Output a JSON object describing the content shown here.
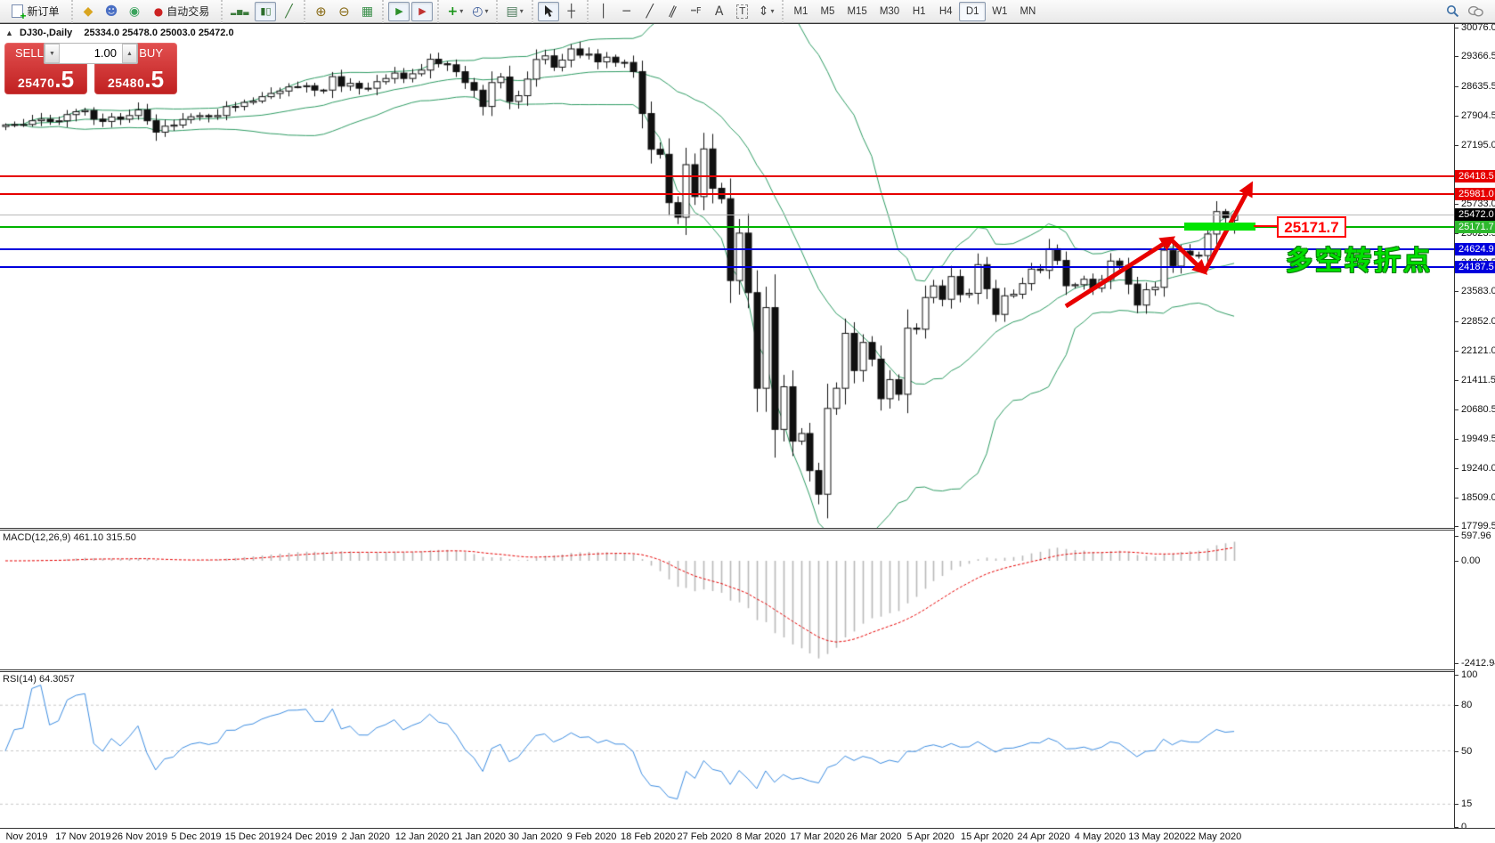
{
  "toolbar": {
    "new_order_label": "新订单",
    "auto_trading_label": "自动交易",
    "timeframes": [
      "M1",
      "M5",
      "M15",
      "M30",
      "H1",
      "H4",
      "D1",
      "W1",
      "MN"
    ],
    "active_timeframe": "D1",
    "icons": {
      "package": "◆",
      "profile": "☻",
      "signal": "◉",
      "auto_trading_dot": "●",
      "bar_chart": "▂▅▃",
      "candle_chart": "▮▯",
      "line_chart": "╱",
      "zoom_in": "⊕",
      "zoom_out": "⊖",
      "tile_windows": "▦",
      "auto_scroll": "▶",
      "chart_shift": "▶",
      "indicators_plus": "+",
      "periods_clock": "◴",
      "templates": "▤",
      "crosshair": "┼",
      "vertical_line": "│",
      "horizontal_line": "─",
      "trend_line": "╱",
      "channel": "∥",
      "fibonacci": "┅F",
      "text": "A",
      "text_label": "T",
      "arrows_tool": "⇕",
      "dropdown": "▾"
    }
  },
  "one_click": {
    "sell_label": "SELL",
    "buy_label": "BUY",
    "volume": "1.00",
    "sell_price_small": "25470",
    "sell_price_big": ".5",
    "buy_price_small": "25480",
    "buy_price_big": ".5"
  },
  "info": {
    "symbol_period": "DJ30-,Daily",
    "ohlc_text": "25334.0 25478.0 25003.0 25472.0"
  },
  "macd_panel": {
    "name": "MACD(12,26,9)",
    "values": "461.10 315.50",
    "axis_ticks": [
      597.96,
      0.0,
      -2412.94
    ]
  },
  "rsi_panel": {
    "name": "RSI(14)",
    "value": "64.3057"
  },
  "chart_data": {
    "type": "candlestick",
    "symbol": "DJ30-",
    "timeframe": "Daily",
    "title": "DJ30-,Daily",
    "last_bar_ohlc": [
      25334.0,
      25478.0,
      25003.0,
      25472.0
    ],
    "y_axis_ticks": [
      30076.0,
      29366.5,
      28635.5,
      27904.5,
      27195.0,
      25733.0,
      25023.5,
      24292.5,
      23583.0,
      22852.0,
      22121.0,
      21411.5,
      20680.5,
      19949.5,
      19240.0,
      18509.0,
      17799.5
    ],
    "x_labels": [
      "Nov 2019",
      "17 Nov 2019",
      "26 Nov 2019",
      "5 Dec 2019",
      "15 Dec 2019",
      "24 Dec 2019",
      "2 Jan 2020",
      "12 Jan 2020",
      "21 Jan 2020",
      "30 Jan 2020",
      "9 Feb 2020",
      "18 Feb 2020",
      "27 Feb 2020",
      "8 Mar 2020",
      "17 Mar 2020",
      "26 Mar 2020",
      "5 Apr 2020",
      "15 Apr 2020",
      "24 Apr 2020",
      "4 May 2020",
      "13 May 2020",
      "22 May 2020"
    ],
    "closes": [
      27681,
      27691,
      27692,
      27784,
      27821,
      27766,
      27782,
      27935,
      28005,
      28036,
      27822,
      27767,
      27876,
      27821,
      27911,
      28051,
      27783,
      27503,
      27650,
      27678,
      27815,
      27882,
      27910,
      27882,
      27912,
      28132,
      28135,
      28235,
      28267,
      28376,
      28455,
      28515,
      28616,
      28621,
      28645,
      28538,
      28538,
      28869,
      28635,
      28704,
      28584,
      28583,
      28745,
      28823,
      28957,
      28824,
      28939,
      29030,
      29297,
      29186,
      29160,
      28990,
      28723,
      28536,
      28135,
      28723,
      28860,
      28257,
      28400,
      28808,
      29291,
      29380,
      29103,
      29277,
      29551,
      29398,
      29423,
      29232,
      29348,
      29220,
      29219,
      28993,
      27961,
      27081,
      26958,
      25767,
      25409,
      26703,
      25917,
      27090,
      26121,
      25865,
      23851,
      25018,
      23553,
      21200,
      23185,
      20188,
      21237,
      19898,
      20087,
      19173,
      18592,
      20704,
      21200,
      22552,
      21636,
      22327,
      21917,
      20943,
      21413,
      21052,
      22679,
      22653,
      23433,
      23719,
      23390,
      23949,
      23504,
      23537,
      24242,
      23650,
      23018,
      23475,
      23515,
      23775,
      24133,
      24101,
      24633,
      24345,
      23723,
      23749,
      23883,
      23664,
      23875,
      24331,
      24221,
      23764,
      23247,
      23625,
      23685,
      24597,
      24206,
      24575,
      24474,
      24465,
      24995,
      25548,
      25400,
      25472
    ],
    "price_markers": [
      {
        "label": "26418.5",
        "price": 26418.5,
        "bg": "#e60000",
        "fg": "#ffffff",
        "line": "#e60000"
      },
      {
        "label": "25981.0",
        "price": 25981.0,
        "bg": "#e60000",
        "fg": "#ffffff",
        "line": "#e60000"
      },
      {
        "label": "25472.0",
        "price": 25472.0,
        "bg": "#000000",
        "fg": "#ffffff",
        "line": "#b8b8b8"
      },
      {
        "label": "25171.7",
        "price": 25171.7,
        "bg": "#2eb82e",
        "fg": "#ffffff",
        "line": "#00b400"
      },
      {
        "label": "24624.9",
        "price": 24624.9,
        "bg": "#0000dd",
        "fg": "#ffffff",
        "line": "#0000dd"
      },
      {
        "label": "24187.5",
        "price": 24187.5,
        "bg": "#0000dd",
        "fg": "#ffffff",
        "line": "#0000dd"
      }
    ],
    "indicators": [
      {
        "name": "Bollinger Bands",
        "period": 20,
        "deviation": 2,
        "color": "#2e9b63"
      },
      {
        "name": "MACD",
        "fast": 12,
        "slow": 26,
        "signal": 9,
        "current_main": 461.1,
        "current_signal": 315.5,
        "axis_max": 597.96,
        "axis_min": -2412.94,
        "histogram_color": "#b9b9b9",
        "signal_color": "#e60000"
      },
      {
        "name": "RSI",
        "period": 14,
        "current": 64.3057,
        "levels": [
          100,
          80,
          50,
          15,
          0
        ],
        "line_color": "#3c8ce0"
      }
    ],
    "annotations": {
      "support_price_label": "25171.7",
      "turning_point_text": "多空转折点",
      "highlight_color": "#00e400",
      "arrow_color": "#e80000"
    }
  }
}
